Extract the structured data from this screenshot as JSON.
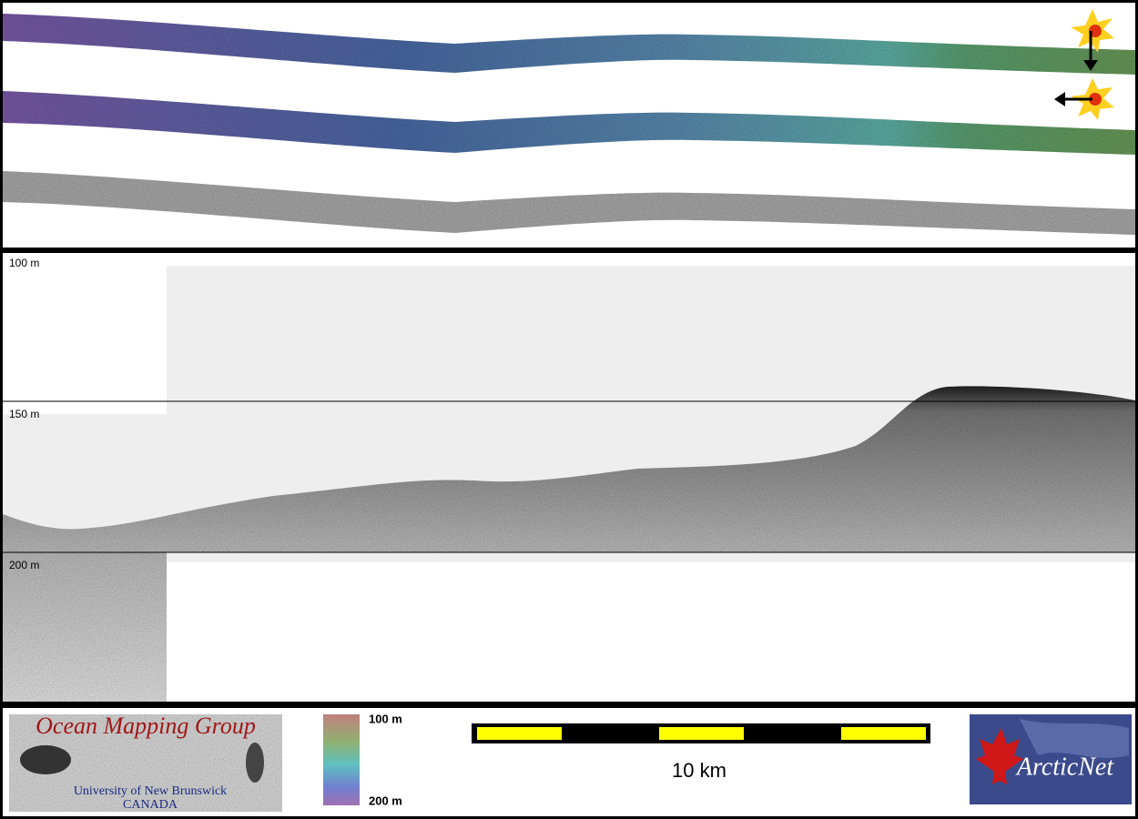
{
  "profile": {
    "depth_labels": [
      "100 m",
      "150 m",
      "200 m"
    ]
  },
  "legend": {
    "colorbar_labels": [
      "100 m",
      "200 m"
    ],
    "scale_bar_label": "10 km"
  },
  "logos": {
    "ocean_mapping": {
      "title": "Ocean Mapping Group",
      "subtitle": "University of New Brunswick",
      "country": "CANADA"
    },
    "arcticnet": "ArcticNet"
  }
}
